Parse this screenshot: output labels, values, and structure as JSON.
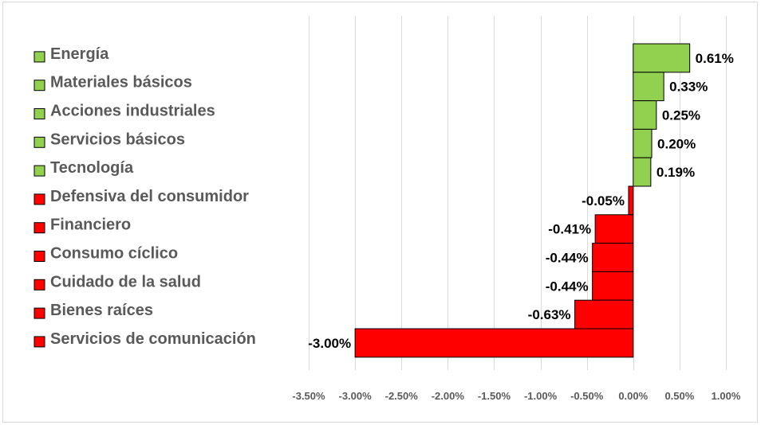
{
  "chart_data": {
    "type": "bar",
    "orientation": "horizontal",
    "categories": [
      "Energía",
      "Materiales básicos",
      "Acciones industriales",
      "Servicios básicos",
      "Tecnología",
      "Defensiva del consumidor",
      "Financiero",
      "Consumo cíclico",
      "Cuidado de la salud",
      "Bienes raíces",
      "Servicios de comunicación"
    ],
    "values": [
      0.61,
      0.33,
      0.25,
      0.2,
      0.19,
      -0.05,
      -0.41,
      -0.44,
      -0.44,
      -0.63,
      -3.0
    ],
    "data_labels": [
      "0.61%",
      "0.33%",
      "0.25%",
      "0.20%",
      "0.19%",
      "-0.05%",
      "-0.41%",
      "-0.44%",
      "-0.44%",
      "-0.63%",
      "-3.00%"
    ],
    "xlim": [
      -3.5,
      1.0
    ],
    "x_ticks": [
      -3.5,
      -3.0,
      -2.5,
      -2.0,
      -1.5,
      -1.0,
      -0.5,
      0.0,
      0.5,
      1.0
    ],
    "x_tick_labels": [
      "-3.50%",
      "-3.00%",
      "-2.50%",
      "-2.00%",
      "-1.50%",
      "-1.00%",
      "-0.50%",
      "0.00%",
      "0.50%",
      "1.00%"
    ],
    "colors": {
      "positive": "#92d050",
      "negative": "#ff0000"
    },
    "grid": "vertical",
    "legend_placement": "left",
    "title": "",
    "xlabel": "",
    "ylabel": ""
  }
}
